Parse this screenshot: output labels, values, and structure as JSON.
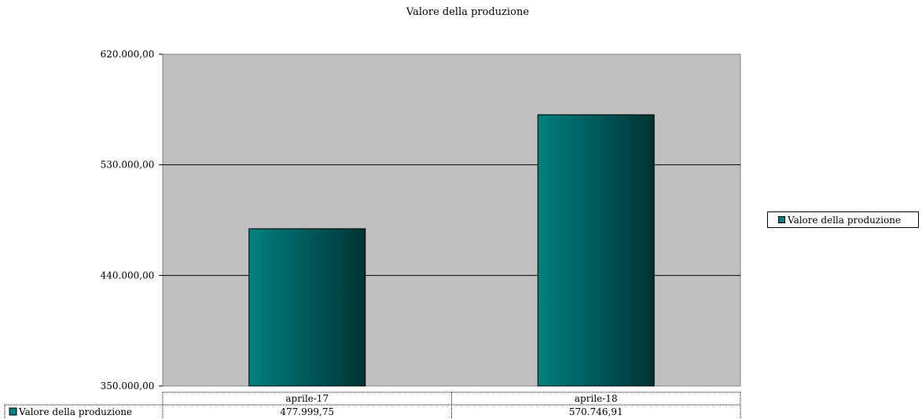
{
  "chart_data": {
    "type": "bar",
    "title": "Valore della produzione",
    "categories": [
      "aprile-17",
      "aprile-18"
    ],
    "series": [
      {
        "name": "Valore della produzione",
        "values": [
          477999.75,
          570746.91
        ],
        "labels": [
          "477.999,75",
          "570.746,91"
        ]
      }
    ],
    "ylim": [
      350000,
      620000
    ],
    "yticks": [
      350000,
      440000,
      530000,
      620000
    ],
    "ytick_labels": [
      "350.000,00",
      "440.000,00",
      "530.000,00",
      "620.000,00"
    ],
    "grid": true,
    "legend_position": "right",
    "data_table": true,
    "colors": {
      "plot_bg": "#c0c0c0",
      "bar_light": "#008080",
      "bar_dark": "#003333",
      "gridline": "#000000"
    }
  }
}
